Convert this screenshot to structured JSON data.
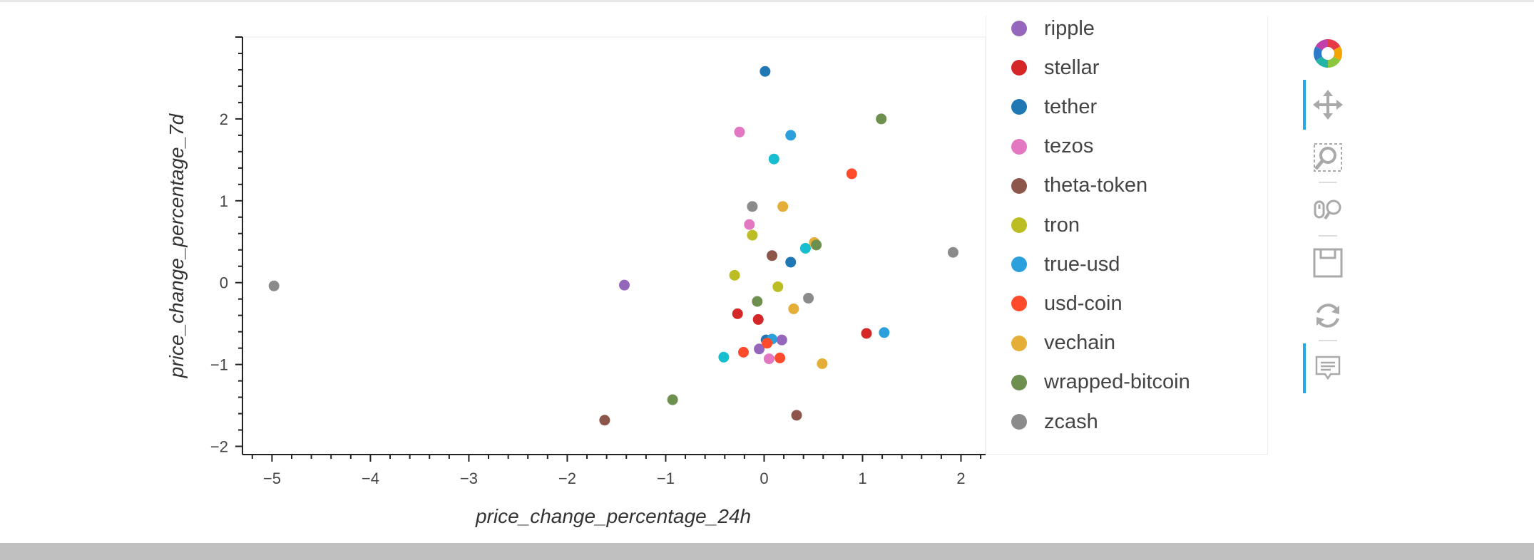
{
  "chart_data": {
    "type": "scatter",
    "xlabel": "price_change_percentage_24h",
    "ylabel": "price_change_percentage_7d",
    "xlim": [
      -5.3,
      2.25
    ],
    "ylim": [
      -2.1,
      3.0
    ],
    "x_ticks": [
      -5,
      -4,
      -3,
      -2,
      -1,
      0,
      1,
      2
    ],
    "x_tick_labels": [
      "−5",
      "−4",
      "−3",
      "−2",
      "−1",
      "0",
      "1",
      "2"
    ],
    "y_ticks": [
      -2,
      -1,
      0,
      1,
      2
    ],
    "y_tick_labels": [
      "−2",
      "−1",
      "0",
      "1",
      "2"
    ],
    "grid": false,
    "legend_position": "right",
    "series": [
      {
        "name": "ripple",
        "color": "#9467bd",
        "points": [
          [
            -1.42,
            -0.03
          ],
          [
            -0.05,
            -0.81
          ],
          [
            0.18,
            -0.7
          ]
        ]
      },
      {
        "name": "stellar",
        "color": "#d62728",
        "points": [
          [
            -0.27,
            -0.38
          ],
          [
            -0.06,
            -0.45
          ],
          [
            1.04,
            -0.62
          ]
        ]
      },
      {
        "name": "tether",
        "color": "#1f77b4",
        "points": [
          [
            0.01,
            2.58
          ],
          [
            0.27,
            0.25
          ],
          [
            0.02,
            -0.7
          ]
        ]
      },
      {
        "name": "tezos",
        "color": "#e377c2",
        "points": [
          [
            -0.25,
            1.84
          ],
          [
            -0.15,
            0.71
          ],
          [
            0.05,
            -0.93
          ]
        ]
      },
      {
        "name": "theta-token",
        "color": "#8c564b",
        "points": [
          [
            -1.62,
            -1.68
          ],
          [
            0.08,
            0.33
          ],
          [
            0.33,
            -1.62
          ]
        ]
      },
      {
        "name": "tron",
        "color": "#bcbd22",
        "points": [
          [
            -0.12,
            0.58
          ],
          [
            -0.3,
            0.09
          ],
          [
            0.14,
            -0.05
          ]
        ]
      },
      {
        "name": "true-usd",
        "color": "#2ca0dc",
        "points": [
          [
            0.27,
            1.8
          ],
          [
            1.22,
            -0.61
          ],
          [
            0.08,
            -0.69
          ]
        ]
      },
      {
        "name": "usd-coin",
        "color": "#ff4b2b",
        "points": [
          [
            0.89,
            1.33
          ],
          [
            -0.21,
            -0.85
          ],
          [
            0.03,
            -0.74
          ],
          [
            0.16,
            -0.92
          ]
        ]
      },
      {
        "name": "vechain",
        "color": "#e5ae38",
        "points": [
          [
            0.19,
            0.93
          ],
          [
            0.51,
            0.49
          ],
          [
            0.3,
            -0.32
          ],
          [
            0.59,
            -0.99
          ]
        ]
      },
      {
        "name": "wrapped-bitcoin",
        "color": "#6d904f",
        "points": [
          [
            1.19,
            2.0
          ],
          [
            0.53,
            0.46
          ],
          [
            -0.07,
            -0.23
          ],
          [
            -0.93,
            -1.43
          ]
        ]
      },
      {
        "name": "zcash",
        "color": "#8b8b8b",
        "points": [
          [
            -4.98,
            -0.04
          ],
          [
            -0.12,
            0.93
          ],
          [
            0.45,
            -0.19
          ],
          [
            1.92,
            0.37
          ]
        ]
      },
      {
        "name": "",
        "color": "#17becf",
        "points": [
          [
            0.1,
            1.51
          ],
          [
            0.42,
            0.42
          ],
          [
            -0.41,
            -0.91
          ]
        ]
      }
    ]
  },
  "legend": {
    "items": [
      {
        "label": "ripple",
        "color": "#9467bd"
      },
      {
        "label": "stellar",
        "color": "#d62728"
      },
      {
        "label": "tether",
        "color": "#1f77b4"
      },
      {
        "label": "tezos",
        "color": "#e377c2"
      },
      {
        "label": "theta-token",
        "color": "#8c564b"
      },
      {
        "label": "tron",
        "color": "#bcbd22"
      },
      {
        "label": "true-usd",
        "color": "#2ca0dc"
      },
      {
        "label": "usd-coin",
        "color": "#ff4b2b"
      },
      {
        "label": "vechain",
        "color": "#e5ae38"
      },
      {
        "label": "wrapped-bitcoin",
        "color": "#6d904f"
      },
      {
        "label": "zcash",
        "color": "#8b8b8b"
      }
    ]
  },
  "toolbar": {
    "tools": [
      {
        "icon": "bokeh-logo-icon",
        "active": false
      },
      {
        "icon": "pan-icon",
        "active": true
      },
      {
        "icon": "box-zoom-icon",
        "active": false
      },
      {
        "icon": "wheel-zoom-icon",
        "active": false
      },
      {
        "icon": "save-icon",
        "active": false
      },
      {
        "icon": "reset-icon",
        "active": false
      },
      {
        "icon": "hover-icon",
        "active": true
      }
    ]
  }
}
